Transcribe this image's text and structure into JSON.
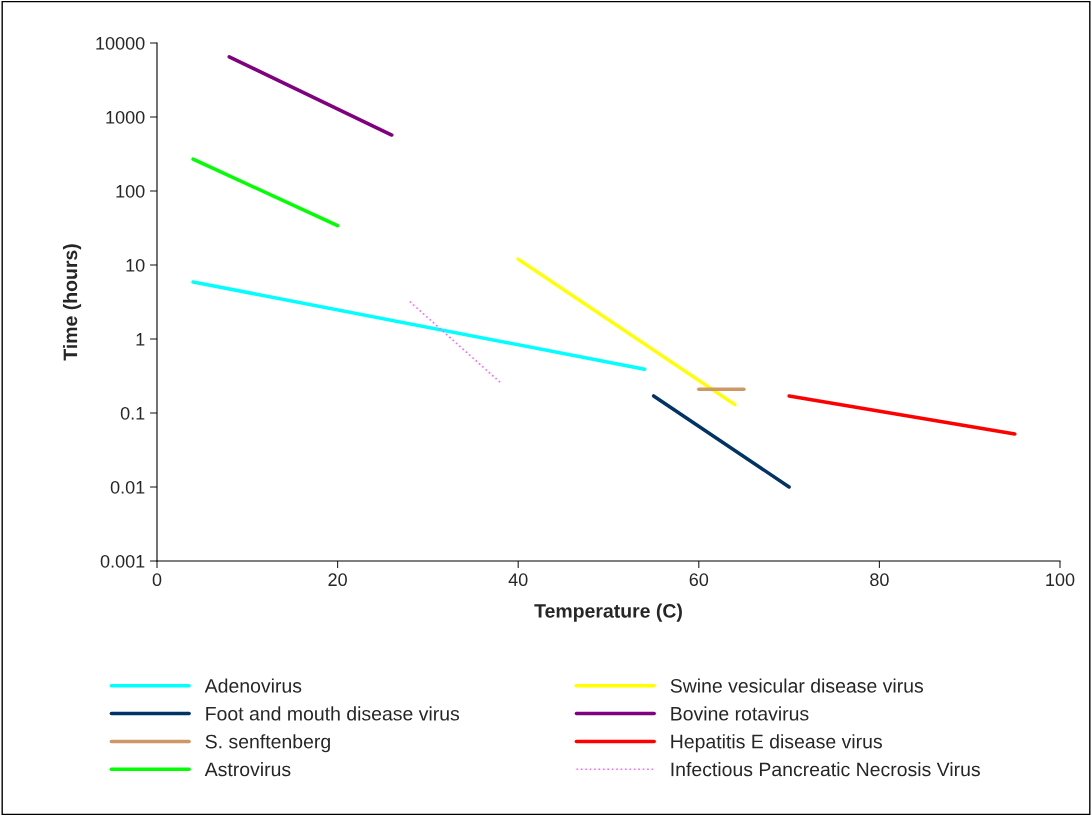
{
  "chart_data": {
    "type": "line",
    "xlabel": "Temperature (C)",
    "ylabel": "Time (hours)",
    "log": "y",
    "xlim": [
      0,
      100
    ],
    "xticks": [
      0,
      20,
      40,
      60,
      80,
      100
    ],
    "ylim": [
      0.001,
      10000
    ],
    "yticks": [
      0.001,
      0.01,
      0.1,
      1,
      10,
      100,
      1000,
      10000
    ],
    "grid": false,
    "legend": "bottom",
    "marker": "none",
    "series": [
      {
        "name": "Adenovirus",
        "color": "#00ffff",
        "x": [
          4,
          54
        ],
        "values": [
          5.9,
          0.39
        ]
      },
      {
        "name": "Swine vesicular disease virus",
        "color": "#ffff00",
        "x": [
          40,
          64
        ],
        "values": [
          12,
          0.13
        ]
      },
      {
        "name": "Foot and mouth disease virus",
        "color": "#003366",
        "x": [
          55,
          70
        ],
        "values": [
          0.17,
          0.01
        ]
      },
      {
        "name": "Bovine rotavirus",
        "color": "#800080",
        "x": [
          8,
          26
        ],
        "values": [
          6500,
          570
        ]
      },
      {
        "name": "S. senftenberg",
        "color": "#cc9966",
        "x": [
          60,
          65
        ],
        "values": [
          0.21,
          0.21
        ]
      },
      {
        "name": "Hepatitis E disease virus",
        "color": "#ff0000",
        "x": [
          70,
          95
        ],
        "values": [
          0.17,
          0.052
        ]
      },
      {
        "name": "Astrovirus",
        "color": "#00ff00",
        "x": [
          4,
          20
        ],
        "values": [
          270,
          34
        ]
      },
      {
        "name": "Infectious Pancreatic Necrosis Virus",
        "color": "#ff66ff",
        "x": [
          28,
          38
        ],
        "values": [
          3.2,
          0.26
        ],
        "line_style": "dotted"
      }
    ]
  }
}
